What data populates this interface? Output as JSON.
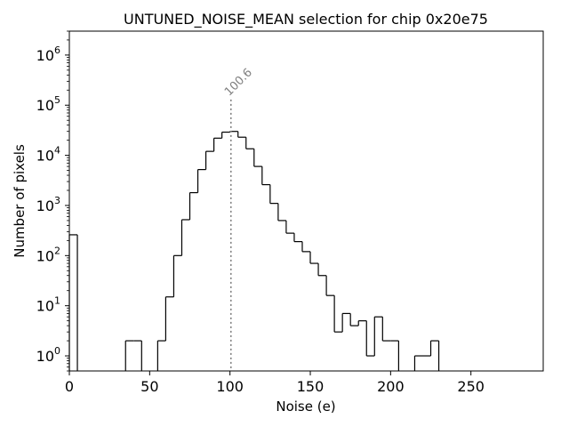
{
  "chart_data": {
    "type": "histogram",
    "title": "UNTUNED_NOISE_MEAN selection for chip 0x20e75",
    "xlabel": "Noise (e)",
    "ylabel": "Number of pixels",
    "xlim": [
      0,
      295
    ],
    "ylim": [
      0.5,
      3000000
    ],
    "y_scale": "log",
    "x_ticks": [
      0,
      50,
      100,
      150,
      200,
      250
    ],
    "y_ticks": [
      {
        "value": 1,
        "base": "10",
        "exp": "0"
      },
      {
        "value": 10,
        "base": "10",
        "exp": "1"
      },
      {
        "value": 100,
        "base": "10",
        "exp": "2"
      },
      {
        "value": 1000,
        "base": "10",
        "exp": "3"
      },
      {
        "value": 10000,
        "base": "10",
        "exp": "4"
      },
      {
        "value": 100000,
        "base": "10",
        "exp": "5"
      },
      {
        "value": 1000000,
        "base": "10",
        "exp": "6"
      }
    ],
    "bin_width": 5,
    "bins": [
      {
        "x": 0,
        "count": 260
      },
      {
        "x": 35,
        "count": 2
      },
      {
        "x": 40,
        "count": 2
      },
      {
        "x": 55,
        "count": 2
      },
      {
        "x": 60,
        "count": 15
      },
      {
        "x": 65,
        "count": 100
      },
      {
        "x": 70,
        "count": 520
      },
      {
        "x": 75,
        "count": 1800
      },
      {
        "x": 80,
        "count": 5200
      },
      {
        "x": 85,
        "count": 12000
      },
      {
        "x": 90,
        "count": 22000
      },
      {
        "x": 95,
        "count": 29000
      },
      {
        "x": 100,
        "count": 30000
      },
      {
        "x": 105,
        "count": 23000
      },
      {
        "x": 110,
        "count": 13500
      },
      {
        "x": 115,
        "count": 6000
      },
      {
        "x": 120,
        "count": 2600
      },
      {
        "x": 125,
        "count": 1100
      },
      {
        "x": 130,
        "count": 500
      },
      {
        "x": 135,
        "count": 280
      },
      {
        "x": 140,
        "count": 190
      },
      {
        "x": 145,
        "count": 120
      },
      {
        "x": 150,
        "count": 70
      },
      {
        "x": 155,
        "count": 40
      },
      {
        "x": 160,
        "count": 16
      },
      {
        "x": 165,
        "count": 3
      },
      {
        "x": 170,
        "count": 7
      },
      {
        "x": 175,
        "count": 4
      },
      {
        "x": 180,
        "count": 5
      },
      {
        "x": 185,
        "count": 1
      },
      {
        "x": 190,
        "count": 6
      },
      {
        "x": 195,
        "count": 2
      },
      {
        "x": 200,
        "count": 2
      },
      {
        "x": 215,
        "count": 1
      },
      {
        "x": 220,
        "count": 1
      },
      {
        "x": 225,
        "count": 2
      }
    ],
    "annotation": {
      "x": 100.6,
      "label": "100.6",
      "line_style": "dotted",
      "color": "#808080"
    },
    "line_color": "#000000",
    "grid": false
  }
}
